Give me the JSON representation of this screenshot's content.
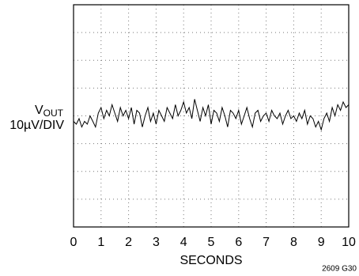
{
  "chart_data": {
    "type": "line",
    "xlabel": "SECONDS",
    "ylabel": "V",
    "ylabel_subscript": "OUT",
    "ylabel_scale": "10µV/DIV",
    "figure_id": "2609 G30",
    "xlim": [
      0,
      10
    ],
    "xticks": [
      0,
      1,
      2,
      3,
      4,
      5,
      6,
      7,
      8,
      9,
      10
    ],
    "ylim": [
      -40,
      40
    ],
    "yticks": [
      -40,
      -30,
      -20,
      -10,
      0,
      10,
      20,
      30,
      40
    ],
    "grid": true,
    "x": [
      0,
      0.1,
      0.2,
      0.3,
      0.4,
      0.5,
      0.6,
      0.7,
      0.8,
      0.9,
      1,
      1.1,
      1.2,
      1.3,
      1.4,
      1.5,
      1.6,
      1.7,
      1.8,
      1.9,
      2,
      2.1,
      2.2,
      2.3,
      2.4,
      2.5,
      2.6,
      2.7,
      2.8,
      2.9,
      3,
      3.1,
      3.2,
      3.3,
      3.4,
      3.5,
      3.6,
      3.7,
      3.8,
      3.9,
      4,
      4.1,
      4.2,
      4.3,
      4.4,
      4.5,
      4.6,
      4.7,
      4.8,
      4.9,
      5,
      5.1,
      5.2,
      5.3,
      5.4,
      5.5,
      5.6,
      5.7,
      5.8,
      5.9,
      6,
      6.1,
      6.2,
      6.3,
      6.4,
      6.5,
      6.6,
      6.7,
      6.8,
      6.9,
      7,
      7.1,
      7.2,
      7.3,
      7.4,
      7.5,
      7.6,
      7.7,
      7.8,
      7.9,
      8,
      8.1,
      8.2,
      8.3,
      8.4,
      8.5,
      8.6,
      8.7,
      8.8,
      8.9,
      9,
      9.1,
      9.2,
      9.3,
      9.4,
      9.5,
      9.6,
      9.7,
      9.8,
      9.9,
      10
    ],
    "series": [
      {
        "color": "#000000",
        "values": [
          -2,
          -3,
          -1,
          -4,
          -2,
          -3,
          0,
          -2,
          -4,
          1,
          3,
          -1,
          2,
          0,
          4,
          1,
          -2,
          3,
          0,
          2,
          -1,
          3,
          -3,
          2,
          1,
          -4,
          0,
          3,
          -2,
          1,
          -3,
          2,
          0,
          -2,
          3,
          1,
          -1,
          4,
          0,
          2,
          5,
          1,
          3,
          -1,
          6,
          2,
          -2,
          3,
          0,
          4,
          -3,
          2,
          1,
          -2,
          3,
          0,
          -4,
          2,
          1,
          -1,
          2,
          -3,
          0,
          3,
          -1,
          -4,
          1,
          2,
          -2,
          0,
          1,
          -2,
          2,
          0,
          -1,
          1,
          -3,
          0,
          2,
          -1,
          0,
          -2,
          1,
          -1,
          2,
          -3,
          0,
          -1,
          -4,
          -2,
          -5,
          -1,
          1,
          -2,
          3,
          0,
          4,
          2,
          5,
          3,
          4
        ]
      }
    ]
  }
}
